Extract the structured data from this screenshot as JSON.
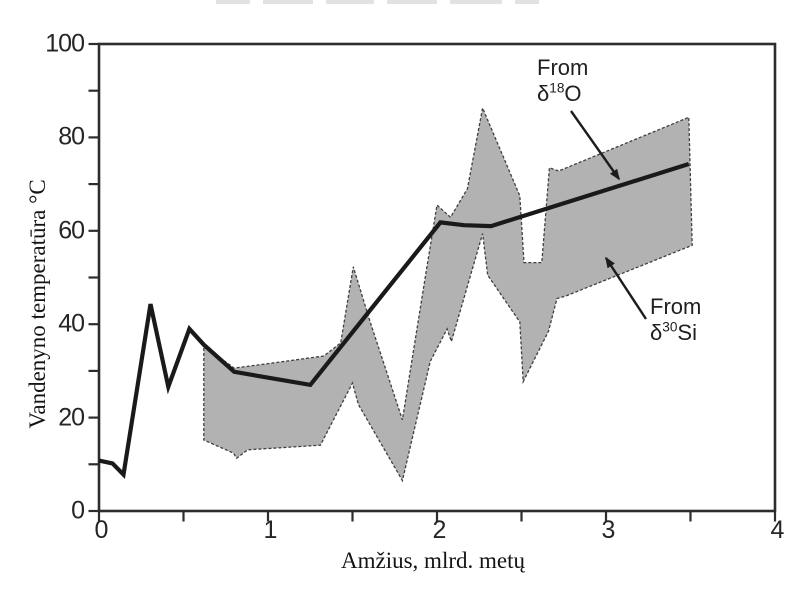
{
  "figure": {
    "background": "#ffffff",
    "colors": {
      "axis": "#2d2d2d",
      "tick_text": "#262626",
      "line": "#1a1a1a",
      "band_fill": "#b2b2b2",
      "band_outline": "#3f3f3f",
      "arrow": "#1c1c1c"
    }
  },
  "chart_data": {
    "type": "line",
    "title": "",
    "xlabel": "Amžius, mlrd. metų",
    "ylabel": "Vandenyno temperatūra °C",
    "xlim": [
      0,
      4
    ],
    "ylim": [
      0,
      100
    ],
    "grid": false,
    "x_ticks": {
      "labeled": [
        0,
        1,
        2,
        3,
        4
      ],
      "minor_step": 0.5
    },
    "y_ticks": {
      "labeled": [
        0,
        20,
        40,
        60,
        80,
        100
      ],
      "minor_step": 10
    },
    "legend_position": "in-plot arrow annotations",
    "series": [
      {
        "name": "From δ18O",
        "kind": "line",
        "points": [
          [
            0.0,
            10.8
          ],
          [
            0.08,
            10.2
          ],
          [
            0.145,
            7.8
          ],
          [
            0.305,
            44.3
          ],
          [
            0.41,
            26.6
          ],
          [
            0.535,
            39.0
          ],
          [
            0.62,
            35.6
          ],
          [
            0.8,
            29.8
          ],
          [
            1.25,
            27.0
          ],
          [
            2.02,
            61.8
          ],
          [
            2.16,
            61.2
          ],
          [
            2.32,
            61.0
          ],
          [
            3.49,
            74.3
          ]
        ]
      },
      {
        "name": "From δ30Si",
        "kind": "band",
        "upper": [
          [
            0.62,
            35.3
          ],
          [
            0.8,
            30.6
          ],
          [
            1.05,
            31.8
          ],
          [
            1.33,
            33.2
          ],
          [
            1.43,
            36.0
          ],
          [
            1.505,
            52.3
          ],
          [
            1.6,
            41.0
          ],
          [
            1.795,
            19.5
          ],
          [
            1.93,
            50.0
          ],
          [
            2.0,
            65.5
          ],
          [
            2.08,
            62.9
          ],
          [
            2.18,
            69.0
          ],
          [
            2.27,
            86.3
          ],
          [
            2.49,
            67.5
          ],
          [
            2.515,
            53.2
          ],
          [
            2.62,
            53.2
          ],
          [
            2.665,
            73.5
          ],
          [
            2.72,
            72.8
          ],
          [
            3.49,
            84.3
          ]
        ],
        "lower": [
          [
            0.62,
            15.2
          ],
          [
            0.795,
            12.4
          ],
          [
            0.815,
            11.3
          ],
          [
            0.88,
            13.1
          ],
          [
            1.31,
            14.1
          ],
          [
            1.5,
            27.4
          ],
          [
            1.535,
            22.8
          ],
          [
            1.795,
            6.5
          ],
          [
            1.96,
            32.0
          ],
          [
            2.06,
            39.0
          ],
          [
            2.085,
            36.3
          ],
          [
            2.27,
            59.4
          ],
          [
            2.3,
            50.5
          ],
          [
            2.49,
            40.5
          ],
          [
            2.51,
            27.7
          ],
          [
            2.66,
            38.5
          ],
          [
            2.71,
            45.5
          ],
          [
            2.76,
            46.0
          ],
          [
            3.51,
            56.9
          ]
        ]
      }
    ]
  },
  "annotations": {
    "d18o": {
      "word": "From",
      "formula": {
        "pre": "δ",
        "sup": "18",
        "post": "O"
      },
      "arrow": {
        "from": [
          571,
          111
        ],
        "to": [
          619,
          179
        ]
      }
    },
    "d30si": {
      "word": "From",
      "formula": {
        "pre": "δ",
        "sup": "30",
        "post": "Si"
      },
      "arrow": {
        "from": [
          646,
          319
        ],
        "to": [
          606,
          258
        ]
      }
    }
  }
}
